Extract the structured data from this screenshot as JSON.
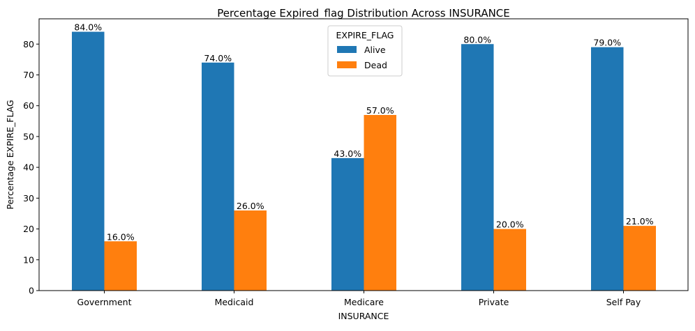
{
  "chart_data": {
    "type": "bar",
    "title": "Percentage Expired_flag Distribution Across INSURANCE",
    "xlabel": "INSURANCE",
    "ylabel": "Percentage EXPIRE_FLAG",
    "categories": [
      "Government",
      "Medicaid",
      "Medicare",
      "Private",
      "Self Pay"
    ],
    "series": [
      {
        "name": "Alive",
        "color": "#1f77b4",
        "values": [
          84.0,
          74.0,
          43.0,
          80.0,
          79.0
        ],
        "labels": [
          "84.0%",
          "74.0%",
          "43.0%",
          "80.0%",
          "79.0%"
        ]
      },
      {
        "name": "Dead",
        "color": "#ff7f0e",
        "values": [
          16.0,
          26.0,
          57.0,
          20.0,
          21.0
        ],
        "labels": [
          "16.0%",
          "26.0%",
          "57.0%",
          "20.0%",
          "21.0%"
        ]
      }
    ],
    "ylim": [
      0,
      88.2
    ],
    "yticks": [
      0,
      10,
      20,
      30,
      40,
      50,
      60,
      70,
      80
    ],
    "grid": false,
    "legend": {
      "title": "EXPIRE_FLAG",
      "placement": "top-center"
    }
  }
}
